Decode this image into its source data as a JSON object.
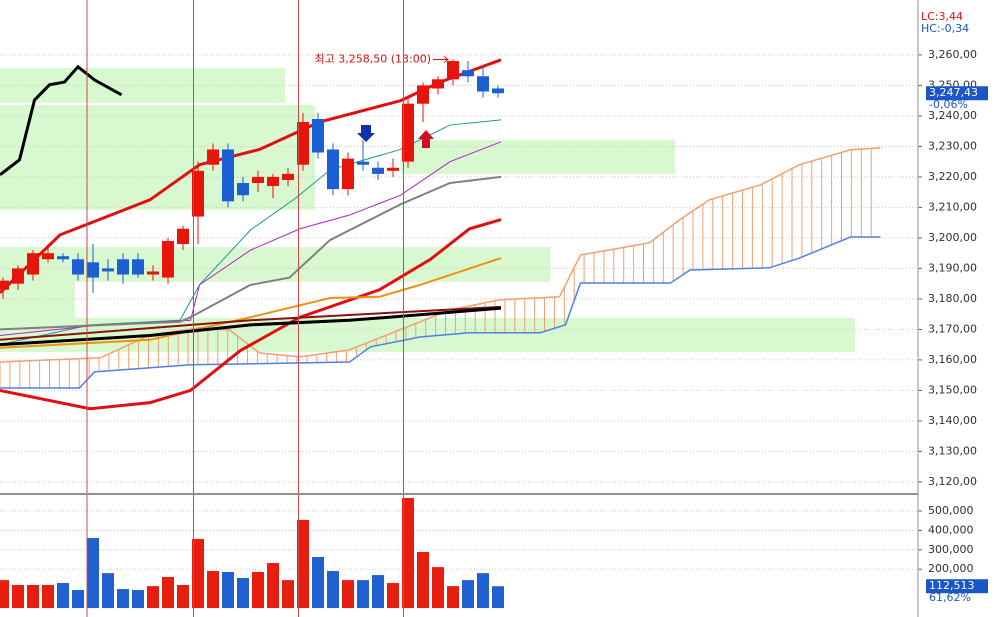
{
  "chart_data": [
    {
      "type": "candlestick",
      "xlim": [
        -0.2,
        61
      ],
      "ylim": [
        3116.7,
        3278
      ],
      "yticks": [
        {
          "value": 3260,
          "label": "3,260,00"
        },
        {
          "value": 3250,
          "label": "3,250,00"
        },
        {
          "value": 3240,
          "label": "3,240,00"
        },
        {
          "value": 3230,
          "label": "3,230,00"
        },
        {
          "value": 3220,
          "label": "3,220,00"
        },
        {
          "value": 3210,
          "label": "3,210,00"
        },
        {
          "value": 3200,
          "label": "3,200,00"
        },
        {
          "value": 3190,
          "label": "3,190,00"
        },
        {
          "value": 3180,
          "label": "3,180,00"
        },
        {
          "value": 3170,
          "label": "3,170,00"
        },
        {
          "value": 3160,
          "label": "3,160,00"
        },
        {
          "value": 3150,
          "label": "3,150,00"
        },
        {
          "value": 3140,
          "label": "3,140,00"
        },
        {
          "value": 3130,
          "label": "3,130,00"
        },
        {
          "value": 3120,
          "label": "3,120,00"
        }
      ],
      "grid": true,
      "up_color": "#e8140c",
      "down_color": "#1c5fd4",
      "open": [
        3183,
        3185,
        3188,
        3193,
        3194,
        3193,
        3192,
        3190,
        3193,
        3193,
        3188,
        3187,
        3198,
        3207,
        3224,
        3229,
        3218,
        3218,
        3217,
        3219,
        3224,
        3239,
        3229,
        3216,
        3225,
        3223,
        3222,
        3225,
        3244,
        3249,
        3252,
        3255,
        3253,
        3249
      ],
      "high": [
        3187,
        3191,
        3196,
        3197,
        3195,
        3195,
        3198,
        3193,
        3195,
        3195,
        3191,
        3200,
        3204,
        3225,
        3231,
        3231,
        3220,
        3222,
        3221,
        3223,
        3241,
        3241,
        3231,
        3228,
        3232,
        3225,
        3226,
        3246,
        3251,
        3253,
        3258.5,
        3258,
        3256,
        3250
      ],
      "low": [
        3180,
        3183,
        3186,
        3192,
        3192,
        3186,
        3182,
        3186,
        3185,
        3187,
        3186,
        3185,
        3196,
        3198,
        3222,
        3210,
        3212,
        3215,
        3213,
        3217,
        3222,
        3226,
        3214,
        3214,
        3222,
        3219,
        3220,
        3223,
        3238,
        3247,
        3250,
        3251,
        3246,
        3246
      ],
      "close": [
        3186,
        3190,
        3195,
        3195,
        3193,
        3188,
        3187,
        3189,
        3188,
        3188,
        3189,
        3199,
        3203,
        3222,
        3229,
        3212,
        3214,
        3220,
        3220,
        3221,
        3238,
        3228,
        3216,
        3226,
        3224,
        3221,
        3223,
        3244,
        3250,
        3252,
        3258,
        3253,
        3248,
        3247.43
      ],
      "lines": [
        {
          "color": "#e01010",
          "width": 3,
          "x": [
            -0.2,
            3.8,
            9.8,
            13.1,
            17.1,
            21.1,
            26.5,
            29.1,
            33.2
          ],
          "values": [
            3182,
            3201,
            3212.5,
            3224,
            3229,
            3238,
            3245,
            3251,
            3258.4
          ]
        },
        {
          "color": "#e01010",
          "width": 3,
          "x": [
            -0.2,
            5.8,
            9.8,
            12.5,
            15.8,
            19.8,
            25.1,
            28.5,
            31.1,
            33.2
          ],
          "values": [
            3150,
            3144,
            3146,
            3150,
            3163,
            3174,
            3183,
            3193,
            3203,
            3206
          ]
        },
        {
          "color": "#1a9a8a",
          "width": 1,
          "x": [
            -0.2,
            5.8,
            11.8,
            13.1,
            16.5,
            19.5,
            21.8,
            26.5,
            29.8,
            33.2
          ],
          "values": [
            3165,
            3171.5,
            3173,
            3184.6,
            3202.6,
            3213,
            3222.3,
            3229,
            3237,
            3238.7
          ]
        },
        {
          "color": "#b020d0",
          "width": 1,
          "x": [
            -0.2,
            6.5,
            12.5,
            13.1,
            16.5,
            19.8,
            23.1,
            26.5,
            29.8,
            33.2
          ],
          "values": [
            3168,
            3171.5,
            3173,
            3184.6,
            3196,
            3203,
            3207.5,
            3214,
            3225,
            3231.5
          ]
        },
        {
          "color": "#808080",
          "width": 2,
          "x": [
            -0.2,
            11.8,
            12.5,
            16.5,
            19.1,
            21.8,
            26.5,
            29.8,
            33.2
          ],
          "values": [
            3170,
            3172.5,
            3174,
            3184.6,
            3187,
            3199.3,
            3211,
            3218,
            3220
          ]
        },
        {
          "color": "#f09010",
          "width": 2,
          "x": [
            -0.2,
            9.8,
            16.5,
            21.8,
            25.1,
            27.8,
            33.2
          ],
          "values": [
            3164,
            3166.6,
            3174,
            3180.3,
            3180.7,
            3184.6,
            3193.4
          ]
        },
        {
          "color": "#8b1010",
          "width": 2,
          "x": [
            -0.2,
            16.5,
            33.2
          ],
          "values": [
            3166.6,
            3173,
            3177.4
          ]
        },
        {
          "color": "#000000",
          "width": 3,
          "x": [
            -0.2,
            9.8,
            16.5,
            23.1,
            27.8,
            33.2
          ],
          "values": [
            3165,
            3168,
            3171.5,
            3173,
            3174.8,
            3177
          ]
        },
        {
          "color": "#000000",
          "width": 3,
          "x": [
            -0.2,
            1.1,
            2.1,
            3.1,
            4.1,
            5,
            6.1,
            7.9
          ],
          "values": [
            3220.7,
            3225.6,
            3245.2,
            3250.2,
            3251.1,
            3256.1,
            3251.8,
            3246.9
          ]
        }
      ],
      "span_a": {
        "color": "#f0a070",
        "x": [
          -0.2,
          6.5,
          9.8,
          13.1,
          15.1,
          17.1,
          19.8,
          23.1,
          29.8,
          33.1,
          37.1,
          38.5,
          43.1,
          45.1,
          47.1,
          50.5,
          53.1,
          56.5,
          58.5
        ],
        "values": [
          3159.3,
          3160.7,
          3168.2,
          3170.5,
          3169.8,
          3162.3,
          3161,
          3163.3,
          3176.4,
          3179.7,
          3180.7,
          3194.4,
          3198.4,
          3205.9,
          3212.5,
          3217.4,
          3224,
          3228.9,
          3229.5
        ]
      },
      "span_b": {
        "color": "#5080e0",
        "x": [
          -0.2,
          5.1,
          6.1,
          12.5,
          23.1,
          24.5,
          27.8,
          31.1,
          35.8,
          37.5,
          38.5,
          44.5,
          45.8,
          51.1,
          53.1,
          56.5,
          58.5
        ],
        "values": [
          3150.8,
          3150.8,
          3156.1,
          3158.4,
          3159.3,
          3164.3,
          3167.5,
          3168.9,
          3168.9,
          3171.5,
          3185.2,
          3185.2,
          3189.5,
          3190.2,
          3193.4,
          3200.3,
          3200.3
        ]
      },
      "zones": [
        {
          "x": [
            -0.2,
            18.8
          ],
          "range": [
            3244.3,
            3255.7
          ]
        },
        {
          "x": [
            -0.2,
            20.8
          ],
          "range": [
            3209.2,
            3243.6
          ]
        },
        {
          "x": [
            26.5,
            44.8
          ],
          "range": [
            3221,
            3232.1
          ]
        },
        {
          "x": [
            -0.2,
            36.5
          ],
          "range": [
            3185.6,
            3197
          ]
        },
        {
          "x": [
            -0.2,
            4.8
          ],
          "range": [
            3171.5,
            3185.6
          ]
        },
        {
          "x": [
            -0.2,
            56.8
          ],
          "range": [
            3162.6,
            3173.8
          ]
        }
      ],
      "zone_color": "#d8f8d0",
      "separators": [
        5.6,
        12.7,
        19.7,
        26.7
      ],
      "high_marker": {
        "index": 30,
        "value": 3258.5,
        "label": "최고 3,258,50 (13:00)"
      },
      "last_price": {
        "value": 3247.43,
        "label": "3,247,43"
      },
      "change_label": "-0,06%",
      "lc_label": "LC:3,44",
      "hc_label": "HC:-0,34"
    },
    {
      "type": "bar",
      "xlim": [
        -0.2,
        61
      ],
      "ylim": [
        -46000,
        572000
      ],
      "yticks": [
        {
          "value": 500000,
          "label": "500,000"
        },
        {
          "value": 400000,
          "label": "400,000"
        },
        {
          "value": 300000,
          "label": "300,000"
        },
        {
          "value": 200000,
          "label": "200,000"
        }
      ],
      "grid": true,
      "values": [
        144000,
        119000,
        119000,
        119000,
        129000,
        93000,
        361000,
        180000,
        98000,
        93000,
        113000,
        160000,
        119000,
        356000,
        191000,
        186000,
        155000,
        186000,
        232000,
        144000,
        454000,
        263000,
        191000,
        144000,
        144000,
        170000,
        129000,
        567000,
        289000,
        211000,
        113000,
        144000,
        180000,
        112513
      ],
      "last_volume": {
        "value": 112513,
        "label": "112,513"
      },
      "ratio_label": "61,62%"
    }
  ]
}
